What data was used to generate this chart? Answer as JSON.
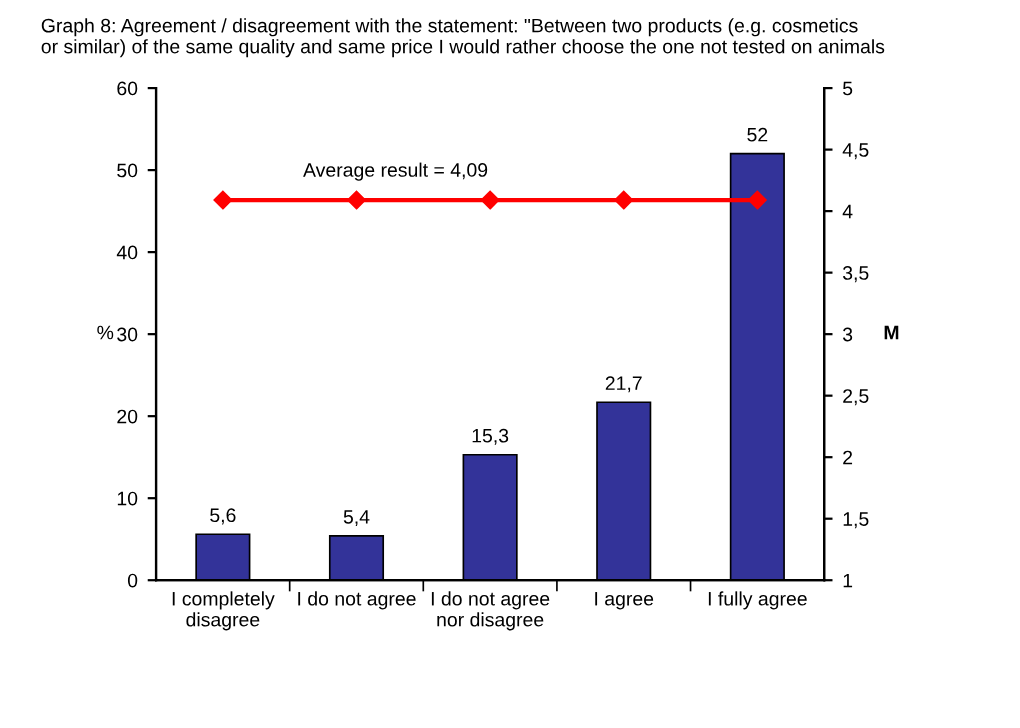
{
  "chart_data": {
    "type": "bar",
    "title": "Graph 8: Agreement / disagreement with the statement: \"Between two products (e.g. cosmetics\nor similar) of the same quality and same price I would rather choose the one not tested on animals",
    "categories": [
      "I completely\ndisagree",
      "I do not agree",
      "I do not agree\nnor disagree",
      "I agree",
      "I fully agree"
    ],
    "ylabel": "%",
    "y2label": "M",
    "series": [
      {
        "color": "#333399",
        "values": [
          5.6,
          5.4,
          15.3,
          21.7,
          52
        ],
        "value_labels": [
          "5,6",
          "5,4",
          "15,3",
          "21,7",
          "52"
        ]
      },
      {
        "type": "line",
        "axis": "y2",
        "color": "#ff0000",
        "marker": "diamond",
        "values": [
          4.09,
          4.09,
          4.09,
          4.09,
          4.09
        ]
      }
    ],
    "annotations": [
      "Average result = 4,09"
    ],
    "ylim": [
      0,
      60
    ],
    "yticks": [
      0,
      10,
      20,
      30,
      40,
      50,
      60
    ],
    "y2lim": [
      1,
      5
    ],
    "y2ticks": [
      1,
      {
        "value": 1.5,
        "label": "1,5"
      },
      2,
      {
        "value": 2.5,
        "label": "2,5"
      },
      3,
      {
        "value": 3.5,
        "label": "3,5"
      },
      4,
      {
        "value": 4.5,
        "label": "4,5"
      },
      5
    ],
    "grid": false,
    "legend": false
  }
}
